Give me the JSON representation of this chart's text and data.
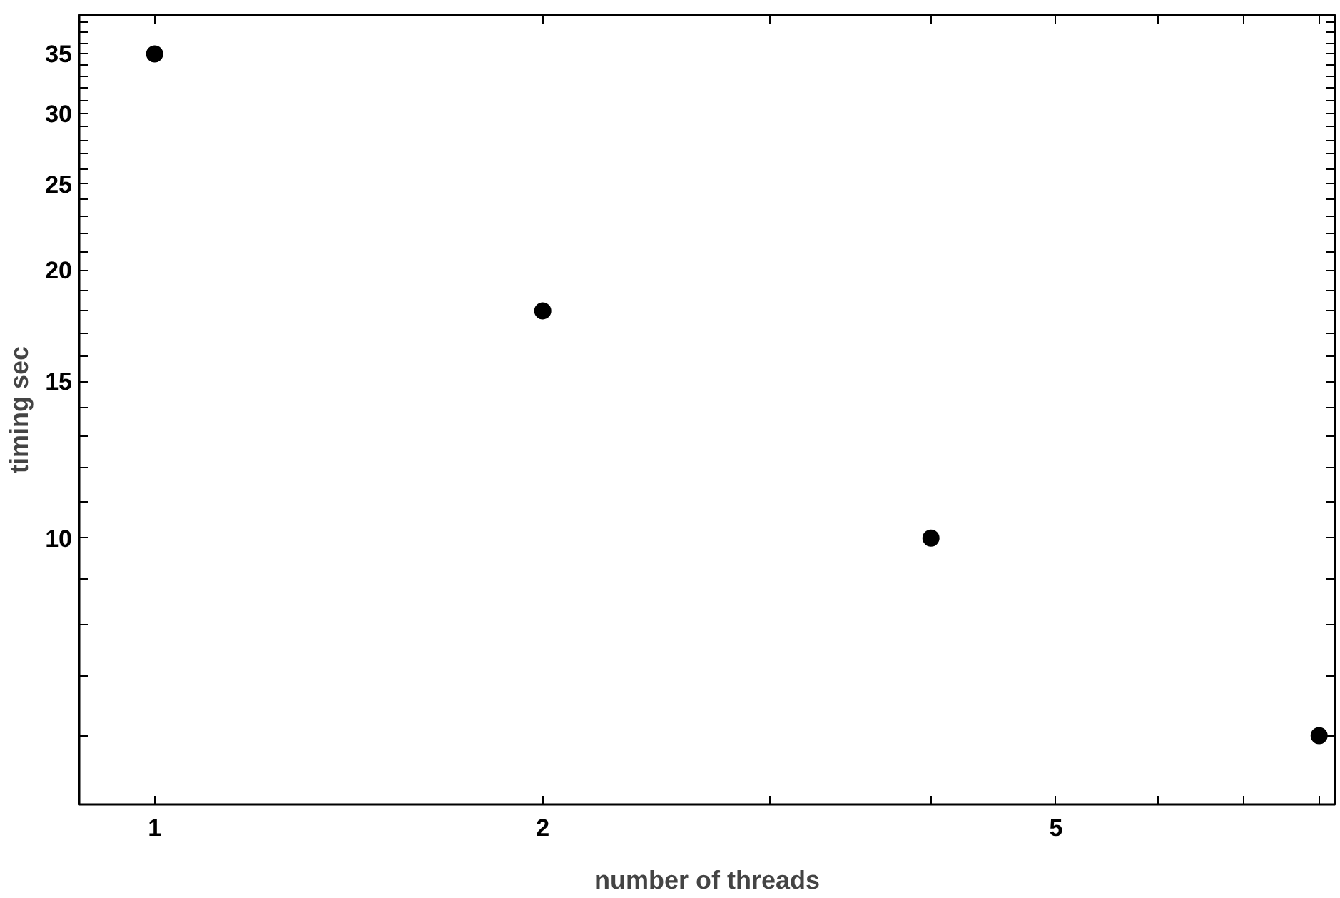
{
  "chart_data": {
    "type": "scatter",
    "xlabel": "number of threads",
    "ylabel": "timing sec",
    "log": "xy",
    "marker": "circle",
    "grid": false,
    "x": [
      1,
      2,
      4,
      8
    ],
    "series": [
      {
        "color": "#000000",
        "values": [
          35,
          18,
          10,
          6
        ]
      }
    ],
    "xlim": [
      0.874,
      8.23
    ],
    "ylim": [
      5.02,
      38.7
    ],
    "xticks": [
      1,
      2,
      {
        "value": 3,
        "label": null
      },
      {
        "value": 4,
        "label": null
      },
      5,
      {
        "value": 6,
        "label": null
      },
      {
        "value": 7,
        "label": null
      },
      {
        "value": 8,
        "label": null
      }
    ],
    "yticks": [
      {
        "value": 6,
        "label": null
      },
      {
        "value": 7,
        "label": null
      },
      {
        "value": 8,
        "label": null
      },
      {
        "value": 9,
        "label": null
      },
      10,
      {
        "value": 11,
        "label": null
      },
      {
        "value": 12,
        "label": null
      },
      {
        "value": 13,
        "label": null
      },
      {
        "value": 14,
        "label": null
      },
      15,
      {
        "value": 16,
        "label": null
      },
      {
        "value": 17,
        "label": null
      },
      {
        "value": 18,
        "label": null
      },
      {
        "value": 19,
        "label": null
      },
      20,
      {
        "value": 21,
        "label": null
      },
      {
        "value": 22,
        "label": null
      },
      {
        "value": 23,
        "label": null
      },
      {
        "value": 24,
        "label": null
      },
      25,
      {
        "value": 26,
        "label": null
      },
      {
        "value": 27,
        "label": null
      },
      {
        "value": 28,
        "label": null
      },
      {
        "value": 29,
        "label": null
      },
      30,
      {
        "value": 31,
        "label": null
      },
      {
        "value": 32,
        "label": null
      },
      {
        "value": 33,
        "label": null
      },
      {
        "value": 34,
        "label": null
      },
      35,
      {
        "value": 36,
        "label": null
      },
      {
        "value": 37,
        "label": null
      },
      {
        "value": 38,
        "label": null
      }
    ]
  }
}
